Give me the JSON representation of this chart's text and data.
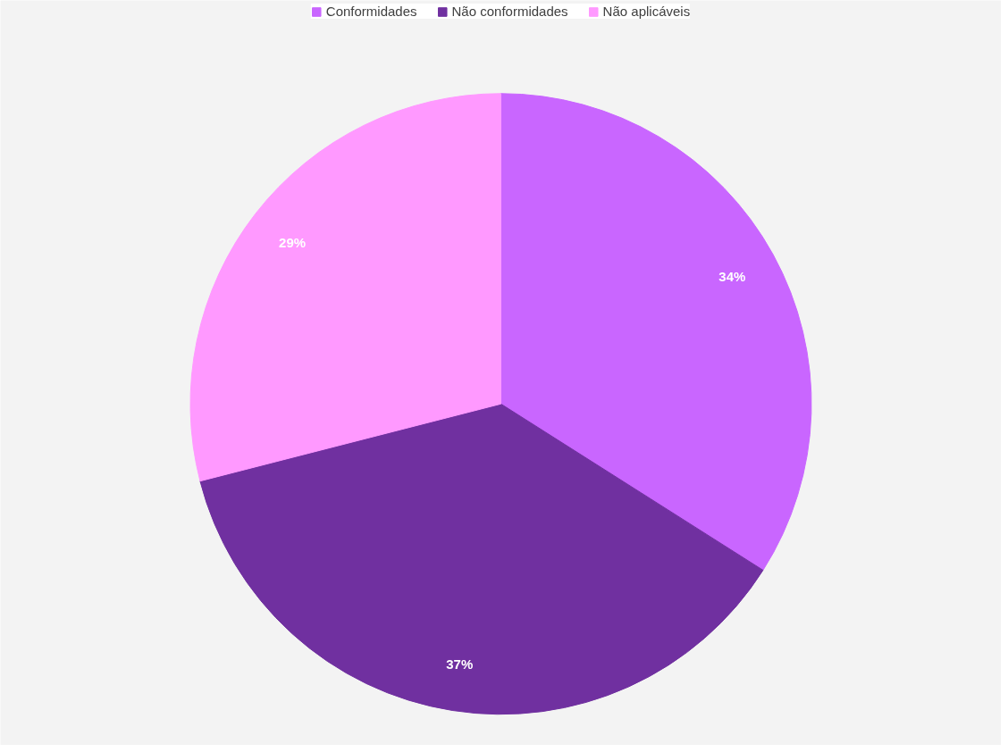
{
  "chart_data": {
    "type": "pie",
    "categories": [
      "Conformidades",
      "Não conformidades",
      "Não aplicáveis"
    ],
    "values": [
      34,
      37,
      29
    ],
    "colors": [
      "#c966ff",
      "#7030a0",
      "#ff99ff"
    ],
    "value_labels": [
      "34%",
      "37%",
      "29%"
    ],
    "legend": "top"
  }
}
